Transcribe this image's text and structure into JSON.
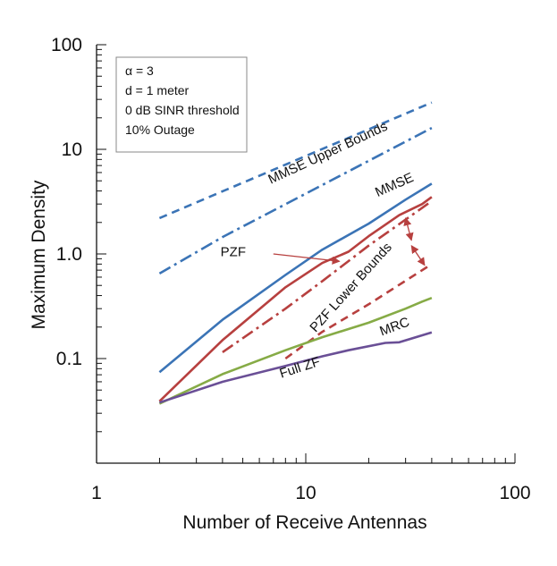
{
  "chart_data": {
    "type": "line",
    "title": "",
    "xlabel": "Number of Receive Antennas",
    "ylabel": "Maximum Density",
    "xscale": "log",
    "yscale": "log",
    "xlim": [
      1,
      100
    ],
    "ylim": [
      0.01,
      100
    ],
    "xticks": [
      {
        "value": 1,
        "label": "1"
      },
      {
        "value": 10,
        "label": "10"
      },
      {
        "value": 100,
        "label": "100"
      }
    ],
    "yticks": [
      {
        "value": 0.1,
        "label": "0.1"
      },
      {
        "value": 1,
        "label": "1.0"
      },
      {
        "value": 10,
        "label": "10"
      },
      {
        "value": 100,
        "label": "100"
      }
    ],
    "legend_box": {
      "position": "top-left",
      "lines": [
        "α = 3",
        "d = 1 meter",
        "0 dB SINR threshold",
        "10% Outage"
      ]
    },
    "series": [
      {
        "name": "MMSE Upper Bound (dashed)",
        "color": "#3b74b6",
        "dash": "dash",
        "x": [
          2,
          40
        ],
        "y": [
          2.2,
          28
        ]
      },
      {
        "name": "MMSE Upper Bound (dash-dot)",
        "color": "#3b74b6",
        "dash": "dashdot",
        "x": [
          2,
          4,
          40
        ],
        "y": [
          0.65,
          1.45,
          16
        ]
      },
      {
        "name": "MMSE",
        "color": "#3b74b6",
        "dash": "solid",
        "x": [
          2,
          4,
          8,
          12,
          20,
          30,
          40
        ],
        "y": [
          0.074,
          0.235,
          0.63,
          1.1,
          1.95,
          3.3,
          4.7
        ]
      },
      {
        "name": "PZF",
        "color": "#b7403f",
        "dash": "solid",
        "x": [
          2,
          4,
          8,
          12,
          16,
          20,
          28,
          36,
          40
        ],
        "y": [
          0.039,
          0.15,
          0.48,
          0.82,
          1.05,
          1.48,
          2.35,
          3.0,
          3.5
        ]
      },
      {
        "name": "PZF Lower Bound (dash-dot)",
        "color": "#b7403f",
        "dash": "dashdot",
        "x": [
          4,
          8,
          12,
          20,
          40
        ],
        "y": [
          0.115,
          0.3,
          0.55,
          1.2,
          3.2
        ]
      },
      {
        "name": "PZF Lower Bound (dashed)",
        "color": "#b7403f",
        "dash": "dash",
        "x": [
          8,
          12,
          20,
          40
        ],
        "y": [
          0.1,
          0.18,
          0.33,
          0.8
        ]
      },
      {
        "name": "MRC",
        "color": "#86ab46",
        "dash": "solid",
        "x": [
          2,
          4,
          8,
          12,
          20,
          30,
          36,
          40
        ],
        "y": [
          0.037,
          0.071,
          0.12,
          0.16,
          0.22,
          0.3,
          0.35,
          0.38
        ]
      },
      {
        "name": "Full ZF",
        "color": "#6a4f96",
        "dash": "solid",
        "x": [
          2,
          4,
          8,
          12,
          16,
          24,
          28,
          40
        ],
        "y": [
          0.038,
          0.06,
          0.085,
          0.105,
          0.12,
          0.141,
          0.143,
          0.178
        ]
      }
    ],
    "annotations": [
      {
        "text": "MMSE Upper Bounds",
        "color": "#111111",
        "at": [
          13,
          8.5
        ],
        "rotation_deg": -25
      },
      {
        "text": "MMSE",
        "color": "#111111",
        "at": [
          27,
          4.2
        ],
        "rotation_deg": -24
      },
      {
        "text": "PZF",
        "color": "#111111",
        "at": [
          4.5,
          0.95
        ],
        "rotation_deg": 0
      },
      {
        "text": "PZF Lower Bounds",
        "color": "#111111",
        "at": [
          17,
          0.45
        ],
        "rotation_deg": -48
      },
      {
        "text": "MRC",
        "color": "#111111",
        "at": [
          27,
          0.185
        ],
        "rotation_deg": -20
      },
      {
        "text": "Full ZF",
        "color": "#111111",
        "at": [
          9.5,
          0.075
        ],
        "rotation_deg": -18
      }
    ],
    "arrows": [
      {
        "from": [
          7,
          1.0
        ],
        "to": [
          14.5,
          0.85
        ],
        "color": "#b7403f",
        "head": "end"
      },
      {
        "from": [
          30,
          2.2
        ],
        "to": [
          32,
          1.35
        ],
        "color": "#b7403f",
        "head": "both"
      },
      {
        "from": [
          32,
          1.2
        ],
        "to": [
          37,
          0.78
        ],
        "color": "#b7403f",
        "head": "both"
      }
    ]
  }
}
